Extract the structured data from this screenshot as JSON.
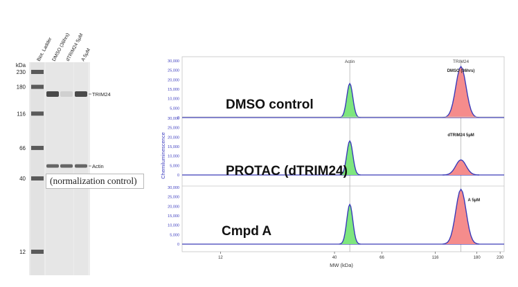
{
  "gel": {
    "kda_header": "kDa",
    "lane_labels": [
      "Biot. Ladder",
      "DMSO (36hrs)",
      "dTRIM24 5µM",
      "A 5µM"
    ],
    "ladder_markers": [
      {
        "label": "230",
        "kda": 230
      },
      {
        "label": "180",
        "kda": 180
      },
      {
        "label": "116",
        "kda": 116
      },
      {
        "label": "66",
        "kda": 66
      },
      {
        "label": "40",
        "kda": 40
      },
      {
        "label": "12",
        "kda": 12
      }
    ],
    "bands": [
      {
        "name": "TRIM24",
        "label": "TRIM24",
        "intensities": [
          0.85,
          0.12,
          0.85
        ]
      },
      {
        "name": "Actin",
        "label": "Actin",
        "intensities": [
          0.7,
          0.7,
          0.7
        ]
      }
    ],
    "annotation": "(normalization control)"
  },
  "chart_data": {
    "type": "area",
    "xlabel": "MW (kDa)",
    "ylabel": "Chemiluminescence",
    "x_ticks": [
      "12",
      "40",
      "66",
      "116",
      "180",
      "230"
    ],
    "x_tick_values": [
      12,
      40,
      66,
      116,
      180,
      230
    ],
    "x_scale": "log",
    "xlim": [
      8,
      240
    ],
    "ylim": [
      0,
      30000
    ],
    "y_ticks": [
      "0",
      "5,000",
      "10,000",
      "15,000",
      "20,000",
      "25,000",
      "30,000"
    ],
    "peak_labels": [
      "Actin",
      "TRIM24"
    ],
    "peak_positions_kda": [
      47,
      152
    ],
    "panels": [
      {
        "name": "DMSO control",
        "annotation": "DMSO (36hrs)",
        "peaks": [
          {
            "name": "Actin",
            "x": 47,
            "height": 18000
          },
          {
            "name": "TRIM24",
            "x": 152,
            "height": 27000
          }
        ]
      },
      {
        "name": "PROTAC (dTRIM24)",
        "annotation": "dTRIM24 5µM",
        "peaks": [
          {
            "name": "Actin",
            "x": 47,
            "height": 18000
          },
          {
            "name": "TRIM24",
            "x": 152,
            "height": 8000
          }
        ]
      },
      {
        "name": "Cmpd A",
        "annotation": "A 5µM",
        "peaks": [
          {
            "name": "Actin",
            "x": 47,
            "height": 21000
          },
          {
            "name": "TRIM24",
            "x": 152,
            "height": 29000
          }
        ]
      }
    ],
    "colors": {
      "actin_fill": "#7ee67e",
      "trim24_fill": "#f58c8c",
      "line": "#3a3ab8",
      "axis_text": "#4040c0"
    }
  }
}
